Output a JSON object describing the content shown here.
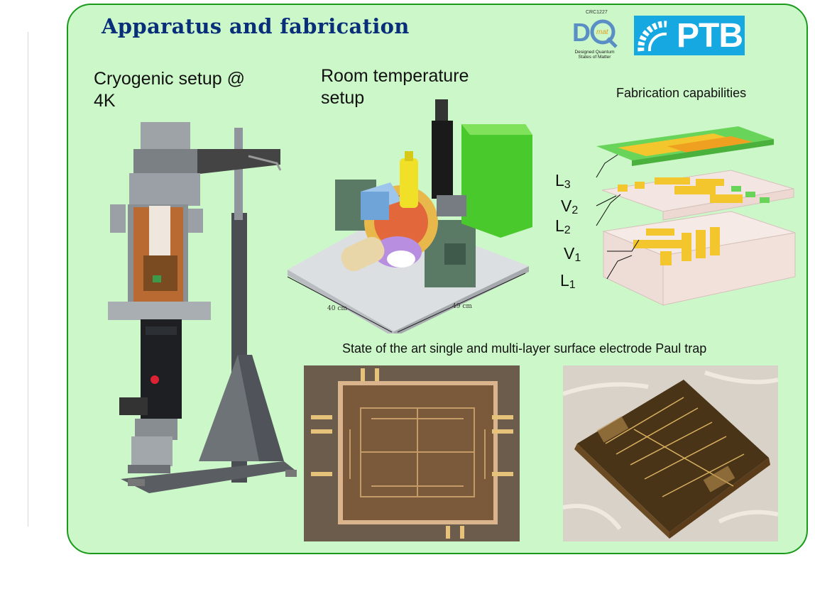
{
  "slide": {
    "title": "Apparatus and fabrication",
    "cryo_heading": "Cryogenic setup @ 4K",
    "room_heading": "Room temperature setup",
    "fab_heading": "Fabrication capabilities",
    "trap_caption": "State of the art single and multi-layer surface electrode Paul trap"
  },
  "logos": {
    "dqmat": {
      "code": "CRC1227",
      "mark": "mat",
      "caption": "Designed Quantum States of Matter"
    },
    "ptb": {
      "text": "PTB"
    }
  },
  "layers": [
    {
      "letter": "L",
      "index": "3"
    },
    {
      "letter": "V",
      "index": "2"
    },
    {
      "letter": "L",
      "index": "2"
    },
    {
      "letter": "V",
      "index": "1"
    },
    {
      "letter": "L",
      "index": "1"
    }
  ],
  "dimensions": {
    "width": "40 cm",
    "depth": "49 cm"
  },
  "colors": {
    "panel": "#ccf7c8",
    "border": "#1a9a1a",
    "title": "#0a2f7a",
    "ptb": "#16a8e0"
  }
}
